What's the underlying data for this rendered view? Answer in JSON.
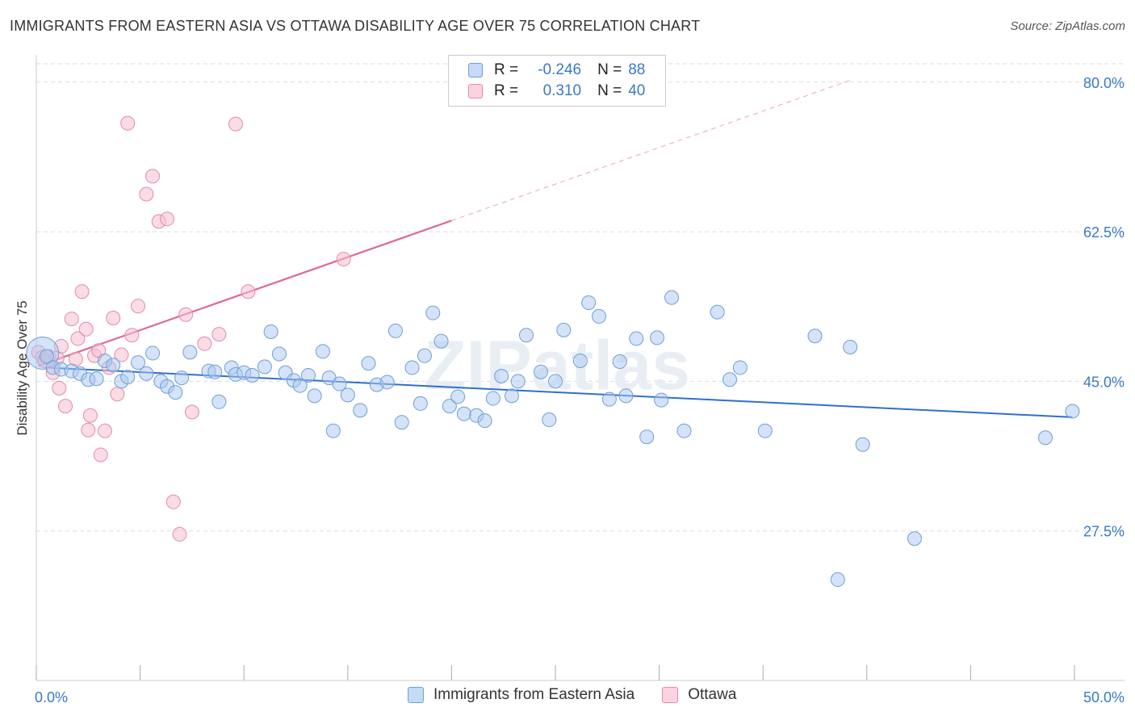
{
  "title": "IMMIGRANTS FROM EASTERN ASIA VS OTTAWA DISABILITY AGE OVER 75 CORRELATION CHART",
  "source": "Source: ZipAtlas.com",
  "watermark": "ZIPatlas",
  "legend": {
    "rows": [
      {
        "r_label": "R =",
        "r_value": "-0.246",
        "n_label": "N =",
        "n_value": "88"
      },
      {
        "r_label": "R =",
        "r_value": "0.310",
        "n_label": "N =",
        "n_value": "40"
      }
    ]
  },
  "bottom_legend": [
    "Immigrants from Eastern Asia",
    "Ottawa"
  ],
  "colors": {
    "blue_fill": "#a9c8f0",
    "blue_stroke": "#6f9fd8",
    "blue_line": "#2f6fcf",
    "pink_fill": "#f6bfd0",
    "pink_stroke": "#e58aa8",
    "pink_line": "#e06894",
    "axis_label": "#3a78c9",
    "grid": "#dddddd"
  },
  "chart_data": {
    "type": "scatter",
    "xlabel": "",
    "ylabel": "Disability Age Over 75",
    "xlim": [
      0,
      50
    ],
    "ylim": [
      10,
      83
    ],
    "x_tick_labels": {
      "left": "0.0%",
      "right": "50.0%"
    },
    "y_ticks": [
      {
        "value": 27.5,
        "label": "27.5%"
      },
      {
        "value": 45.0,
        "label": "45.0%"
      },
      {
        "value": 62.5,
        "label": "62.5%"
      },
      {
        "value": 80.0,
        "label": "80.0%"
      }
    ],
    "grid": true,
    "legend_position": "top-center",
    "series": [
      {
        "name": "Immigrants from Eastern Asia",
        "color": "#a9c8f0",
        "points": [
          [
            0.3,
            48.3
          ],
          [
            0.5,
            47.9
          ],
          [
            0.8,
            46.6
          ],
          [
            1.2,
            46.4
          ],
          [
            1.7,
            46.2
          ],
          [
            2.1,
            45.9
          ],
          [
            2.5,
            45.2
          ],
          [
            2.9,
            45.3
          ],
          [
            3.3,
            47.4
          ],
          [
            3.7,
            46.9
          ],
          [
            4.1,
            45.0
          ],
          [
            4.4,
            45.5
          ],
          [
            4.9,
            47.2
          ],
          [
            5.3,
            45.9
          ],
          [
            5.6,
            48.3
          ],
          [
            6.0,
            45.0
          ],
          [
            6.3,
            44.4
          ],
          [
            6.7,
            43.7
          ],
          [
            7.0,
            45.4
          ],
          [
            7.4,
            48.4
          ],
          [
            8.3,
            46.2
          ],
          [
            8.6,
            46.1
          ],
          [
            8.8,
            42.6
          ],
          [
            9.4,
            46.6
          ],
          [
            9.6,
            45.8
          ],
          [
            10.0,
            46.0
          ],
          [
            10.4,
            45.7
          ],
          [
            11.0,
            46.7
          ],
          [
            11.3,
            50.8
          ],
          [
            11.7,
            48.2
          ],
          [
            12.0,
            46.0
          ],
          [
            12.4,
            45.1
          ],
          [
            12.7,
            44.5
          ],
          [
            13.1,
            45.7
          ],
          [
            13.4,
            43.3
          ],
          [
            13.8,
            48.5
          ],
          [
            14.1,
            45.4
          ],
          [
            14.6,
            44.7
          ],
          [
            14.3,
            39.2
          ],
          [
            15.0,
            43.4
          ],
          [
            15.6,
            41.6
          ],
          [
            16.0,
            47.1
          ],
          [
            16.4,
            44.6
          ],
          [
            16.9,
            44.9
          ],
          [
            17.3,
            50.9
          ],
          [
            17.6,
            40.2
          ],
          [
            18.1,
            46.6
          ],
          [
            18.5,
            42.4
          ],
          [
            18.7,
            48.0
          ],
          [
            19.1,
            53.0
          ],
          [
            19.5,
            49.7
          ],
          [
            19.9,
            42.1
          ],
          [
            20.3,
            43.2
          ],
          [
            20.6,
            41.2
          ],
          [
            21.2,
            41.0
          ],
          [
            21.6,
            40.4
          ],
          [
            22.0,
            43.0
          ],
          [
            22.4,
            45.6
          ],
          [
            22.9,
            43.3
          ],
          [
            23.2,
            45.0
          ],
          [
            23.6,
            50.4
          ],
          [
            24.3,
            46.1
          ],
          [
            24.7,
            40.5
          ],
          [
            25.0,
            45.0
          ],
          [
            25.4,
            51.0
          ],
          [
            26.2,
            47.4
          ],
          [
            26.6,
            54.2
          ],
          [
            27.1,
            52.6
          ],
          [
            27.6,
            42.9
          ],
          [
            28.1,
            47.3
          ],
          [
            28.4,
            43.3
          ],
          [
            28.9,
            50.0
          ],
          [
            29.4,
            38.5
          ],
          [
            29.9,
            50.1
          ],
          [
            30.1,
            42.8
          ],
          [
            30.6,
            54.8
          ],
          [
            31.2,
            39.2
          ],
          [
            32.8,
            53.1
          ],
          [
            33.4,
            45.2
          ],
          [
            33.9,
            46.6
          ],
          [
            35.1,
            39.2
          ],
          [
            37.5,
            50.3
          ],
          [
            38.6,
            21.8
          ],
          [
            39.2,
            49.0
          ],
          [
            39.8,
            37.6
          ],
          [
            42.3,
            26.6
          ],
          [
            48.6,
            38.4
          ],
          [
            49.9,
            41.5
          ]
        ],
        "trend": {
          "x": [
            0.5,
            49.9
          ],
          "y": [
            46.6,
            40.8
          ]
        }
      },
      {
        "name": "Ottawa",
        "color": "#f6bfd0",
        "points": [
          [
            0.1,
            48.4
          ],
          [
            0.3,
            47.8
          ],
          [
            0.4,
            47.4
          ],
          [
            0.6,
            47.9
          ],
          [
            0.8,
            46.0
          ],
          [
            1.0,
            47.7
          ],
          [
            1.1,
            44.2
          ],
          [
            1.2,
            49.1
          ],
          [
            1.4,
            42.1
          ],
          [
            1.7,
            52.3
          ],
          [
            1.9,
            47.6
          ],
          [
            2.0,
            50.0
          ],
          [
            2.2,
            55.5
          ],
          [
            2.4,
            51.1
          ],
          [
            2.5,
            39.3
          ],
          [
            2.6,
            41.0
          ],
          [
            2.8,
            48.0
          ],
          [
            3.0,
            48.6
          ],
          [
            3.1,
            36.4
          ],
          [
            3.3,
            39.2
          ],
          [
            3.5,
            46.6
          ],
          [
            3.7,
            52.4
          ],
          [
            3.9,
            43.5
          ],
          [
            4.1,
            48.1
          ],
          [
            4.4,
            75.2
          ],
          [
            4.6,
            50.4
          ],
          [
            4.9,
            53.8
          ],
          [
            5.3,
            66.9
          ],
          [
            5.6,
            69.0
          ],
          [
            5.9,
            63.7
          ],
          [
            6.3,
            64.0
          ],
          [
            6.6,
            30.9
          ],
          [
            6.9,
            27.1
          ],
          [
            7.2,
            52.8
          ],
          [
            7.5,
            41.4
          ],
          [
            8.1,
            49.4
          ],
          [
            8.8,
            50.5
          ],
          [
            9.6,
            75.1
          ],
          [
            10.2,
            55.5
          ],
          [
            14.8,
            59.3
          ]
        ],
        "trend": {
          "x": [
            0.1,
            20.0
          ],
          "y": [
            46.8,
            63.8
          ]
        },
        "trend_extension": {
          "x": [
            20.0,
            39.3
          ],
          "y": [
            63.8,
            80.3
          ]
        }
      }
    ]
  }
}
